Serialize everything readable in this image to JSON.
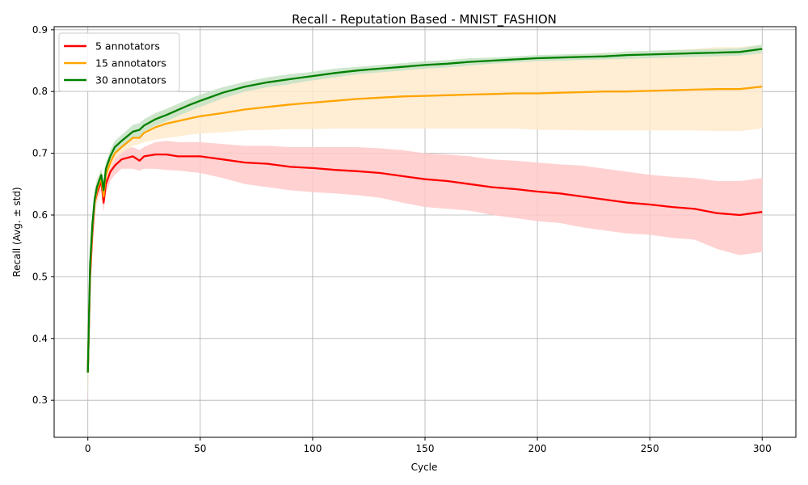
{
  "chart_data": {
    "type": "line",
    "title": "Recall - Reputation Based - MNIST_FASHION",
    "xlabel": "Cycle",
    "ylabel": "Recall (Avg. ± std)",
    "xlim": [
      -15,
      315
    ],
    "ylim": [
      0.24,
      0.905
    ],
    "xticks": [
      0,
      50,
      100,
      150,
      200,
      250,
      300
    ],
    "yticks": [
      0.3,
      0.4,
      0.5,
      0.6,
      0.7,
      0.8,
      0.9
    ],
    "xtick_labels": [
      "0",
      "50",
      "100",
      "150",
      "200",
      "250",
      "300"
    ],
    "ytick_labels": [
      "0.3",
      "0.4",
      "0.5",
      "0.6",
      "0.7",
      "0.8",
      "0.9"
    ],
    "grid": true,
    "legend_position": "top-left",
    "x": [
      0,
      1,
      2,
      3,
      4,
      5,
      6,
      7,
      8,
      10,
      12,
      15,
      20,
      23,
      25,
      30,
      35,
      40,
      45,
      50,
      60,
      70,
      80,
      90,
      100,
      110,
      120,
      130,
      140,
      150,
      160,
      170,
      180,
      190,
      200,
      210,
      220,
      230,
      240,
      250,
      260,
      270,
      280,
      290,
      300
    ],
    "series": [
      {
        "name": "5 annotators",
        "color": "#ff0000",
        "fill": "#ffc9c9",
        "mean": [
          0.345,
          0.5,
          0.57,
          0.62,
          0.635,
          0.645,
          0.655,
          0.62,
          0.65,
          0.67,
          0.68,
          0.69,
          0.695,
          0.688,
          0.695,
          0.698,
          0.698,
          0.695,
          0.695,
          0.695,
          0.69,
          0.685,
          0.683,
          0.678,
          0.676,
          0.673,
          0.671,
          0.668,
          0.663,
          0.658,
          0.655,
          0.65,
          0.645,
          0.642,
          0.638,
          0.635,
          0.63,
          0.625,
          0.62,
          0.617,
          0.613,
          0.61,
          0.603,
          0.6,
          0.605
        ],
        "lower": [
          0.29,
          0.47,
          0.55,
          0.6,
          0.62,
          0.63,
          0.64,
          0.605,
          0.635,
          0.655,
          0.665,
          0.675,
          0.675,
          0.672,
          0.675,
          0.675,
          0.673,
          0.672,
          0.67,
          0.668,
          0.66,
          0.65,
          0.645,
          0.64,
          0.637,
          0.635,
          0.632,
          0.628,
          0.62,
          0.613,
          0.61,
          0.607,
          0.6,
          0.595,
          0.59,
          0.587,
          0.58,
          0.575,
          0.57,
          0.568,
          0.563,
          0.56,
          0.545,
          0.535,
          0.54
        ],
        "upper": [
          0.39,
          0.53,
          0.59,
          0.64,
          0.65,
          0.66,
          0.67,
          0.635,
          0.665,
          0.685,
          0.695,
          0.705,
          0.71,
          0.705,
          0.71,
          0.718,
          0.72,
          0.718,
          0.718,
          0.718,
          0.715,
          0.712,
          0.712,
          0.71,
          0.71,
          0.71,
          0.71,
          0.708,
          0.705,
          0.7,
          0.698,
          0.695,
          0.69,
          0.688,
          0.685,
          0.682,
          0.68,
          0.675,
          0.67,
          0.665,
          0.662,
          0.66,
          0.655,
          0.655,
          0.66
        ]
      },
      {
        "name": "15 annotators",
        "color": "#ffa500",
        "fill": "#ffeacc",
        "mean": [
          0.345,
          0.51,
          0.58,
          0.62,
          0.64,
          0.65,
          0.66,
          0.63,
          0.665,
          0.685,
          0.7,
          0.71,
          0.725,
          0.725,
          0.733,
          0.742,
          0.748,
          0.752,
          0.756,
          0.76,
          0.765,
          0.771,
          0.775,
          0.779,
          0.782,
          0.785,
          0.788,
          0.79,
          0.792,
          0.793,
          0.794,
          0.795,
          0.796,
          0.797,
          0.797,
          0.798,
          0.799,
          0.8,
          0.8,
          0.801,
          0.802,
          0.803,
          0.804,
          0.804,
          0.808
        ],
        "lower": [
          0.3,
          0.48,
          0.56,
          0.6,
          0.62,
          0.635,
          0.645,
          0.62,
          0.65,
          0.675,
          0.69,
          0.7,
          0.712,
          0.715,
          0.718,
          0.722,
          0.725,
          0.727,
          0.73,
          0.732,
          0.734,
          0.737,
          0.738,
          0.739,
          0.739,
          0.74,
          0.74,
          0.74,
          0.74,
          0.74,
          0.74,
          0.74,
          0.74,
          0.74,
          0.738,
          0.738,
          0.737,
          0.737,
          0.737,
          0.737,
          0.737,
          0.737,
          0.736,
          0.736,
          0.74
        ],
        "upper": [
          0.39,
          0.54,
          0.6,
          0.64,
          0.66,
          0.665,
          0.675,
          0.645,
          0.68,
          0.695,
          0.71,
          0.72,
          0.738,
          0.735,
          0.748,
          0.762,
          0.77,
          0.777,
          0.782,
          0.788,
          0.796,
          0.805,
          0.812,
          0.819,
          0.825,
          0.83,
          0.836,
          0.84,
          0.844,
          0.846,
          0.848,
          0.85,
          0.852,
          0.854,
          0.856,
          0.858,
          0.861,
          0.863,
          0.863,
          0.865,
          0.867,
          0.869,
          0.872,
          0.872,
          0.876
        ]
      },
      {
        "name": "30 annotators",
        "color": "#008000",
        "fill": "#c4e2c4",
        "mean": [
          0.345,
          0.52,
          0.585,
          0.625,
          0.645,
          0.655,
          0.665,
          0.64,
          0.675,
          0.695,
          0.71,
          0.72,
          0.735,
          0.738,
          0.745,
          0.755,
          0.762,
          0.77,
          0.778,
          0.785,
          0.798,
          0.808,
          0.815,
          0.82,
          0.825,
          0.83,
          0.834,
          0.837,
          0.84,
          0.843,
          0.845,
          0.848,
          0.85,
          0.852,
          0.854,
          0.855,
          0.856,
          0.857,
          0.859,
          0.86,
          0.861,
          0.862,
          0.863,
          0.864,
          0.869
        ],
        "lower": [
          0.31,
          0.5,
          0.57,
          0.61,
          0.635,
          0.645,
          0.655,
          0.63,
          0.665,
          0.685,
          0.7,
          0.71,
          0.724,
          0.727,
          0.735,
          0.745,
          0.752,
          0.76,
          0.768,
          0.775,
          0.789,
          0.8,
          0.807,
          0.812,
          0.818,
          0.823,
          0.828,
          0.831,
          0.834,
          0.837,
          0.839,
          0.842,
          0.845,
          0.847,
          0.849,
          0.85,
          0.851,
          0.852,
          0.853,
          0.854,
          0.855,
          0.856,
          0.857,
          0.858,
          0.862
        ],
        "upper": [
          0.38,
          0.54,
          0.6,
          0.64,
          0.655,
          0.665,
          0.675,
          0.65,
          0.685,
          0.705,
          0.72,
          0.73,
          0.746,
          0.749,
          0.755,
          0.765,
          0.772,
          0.78,
          0.788,
          0.795,
          0.807,
          0.816,
          0.823,
          0.828,
          0.832,
          0.837,
          0.84,
          0.843,
          0.846,
          0.849,
          0.851,
          0.854,
          0.855,
          0.857,
          0.859,
          0.86,
          0.861,
          0.862,
          0.865,
          0.866,
          0.867,
          0.868,
          0.869,
          0.87,
          0.876
        ]
      }
    ]
  }
}
